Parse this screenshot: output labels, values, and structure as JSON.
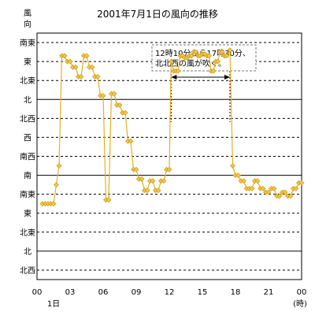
{
  "chart_data": {
    "type": "line",
    "title": "2001年7月1日の風向の推移",
    "ylabel": "風向",
    "xlabel": "(時)",
    "x_start_label": "1日",
    "x_ticks": [
      "00",
      "03",
      "06",
      "09",
      "12",
      "15",
      "18",
      "21",
      "00"
    ],
    "x_tick_hours": [
      0,
      3,
      6,
      9,
      12,
      15,
      18,
      21,
      24
    ],
    "xlim": [
      0,
      24
    ],
    "y_levels": [
      "北西",
      "北",
      "北東",
      "東",
      "南東",
      "南",
      "南西",
      "西",
      "北西",
      "北",
      "北東",
      "東",
      "南東"
    ],
    "y_solid_levels": [
      1,
      5,
      9
    ],
    "grid": true,
    "line_color": "#E8B020",
    "marker_color": "#F0C840",
    "annotation": {
      "text_lines": [
        "12時10分から17時30分、",
        "北北西の風が吹く。"
      ],
      "x_from": 12.1667,
      "x_to": 17.5
    },
    "series": [
      {
        "values": [
          [
            0.5,
            3.5
          ],
          [
            0.75,
            3.5
          ],
          [
            1.0,
            3.5
          ],
          [
            1.25,
            3.5
          ],
          [
            1.5,
            3.5
          ],
          [
            1.75,
            4.5
          ],
          [
            2.0,
            5.5
          ],
          [
            2.25,
            11.3
          ],
          [
            2.5,
            11.3
          ],
          [
            2.75,
            11.0
          ],
          [
            3.0,
            11.0
          ],
          [
            3.25,
            10.7
          ],
          [
            3.5,
            10.7
          ],
          [
            3.75,
            10.2
          ],
          [
            4.0,
            10.2
          ],
          [
            4.25,
            11.3
          ],
          [
            4.5,
            11.3
          ],
          [
            4.75,
            10.7
          ],
          [
            5.0,
            10.7
          ],
          [
            5.25,
            10.2
          ],
          [
            5.5,
            10.2
          ],
          [
            5.75,
            9.2
          ],
          [
            6.0,
            9.2
          ],
          [
            6.25,
            3.7
          ],
          [
            6.5,
            3.7
          ],
          [
            6.75,
            9.3
          ],
          [
            7.0,
            9.3
          ],
          [
            7.25,
            8.7
          ],
          [
            7.5,
            8.7
          ],
          [
            7.75,
            8.3
          ],
          [
            8.0,
            8.3
          ],
          [
            8.25,
            6.8
          ],
          [
            8.5,
            6.8
          ],
          [
            8.75,
            5.3
          ],
          [
            9.0,
            5.3
          ],
          [
            9.25,
            4.8
          ],
          [
            9.5,
            4.8
          ],
          [
            9.75,
            4.2
          ],
          [
            10.0,
            4.2
          ],
          [
            10.25,
            4.7
          ],
          [
            10.5,
            4.7
          ],
          [
            10.75,
            4.2
          ],
          [
            11.0,
            4.2
          ],
          [
            11.25,
            4.7
          ],
          [
            11.5,
            4.7
          ],
          [
            11.75,
            5.3
          ],
          [
            12.0,
            5.3
          ],
          [
            12.1667,
            11.0
          ],
          [
            12.4,
            10.5
          ],
          [
            12.6,
            10.5
          ],
          [
            12.8,
            10.5
          ],
          [
            13.0,
            11.3
          ],
          [
            13.2,
            11.3
          ],
          [
            13.4,
            11.2
          ],
          [
            13.6,
            11.2
          ],
          [
            13.8,
            11.3
          ],
          [
            14.0,
            11.3
          ],
          [
            14.2,
            11.5
          ],
          [
            14.4,
            11.5
          ],
          [
            14.6,
            11.3
          ],
          [
            14.8,
            11.3
          ],
          [
            15.0,
            11.4
          ],
          [
            15.2,
            11.4
          ],
          [
            15.4,
            11.3
          ],
          [
            15.6,
            11.3
          ],
          [
            15.8,
            10.5
          ],
          [
            16.0,
            10.5
          ],
          [
            16.2,
            11.0
          ],
          [
            16.4,
            11.0
          ],
          [
            16.6,
            11.5
          ],
          [
            16.8,
            11.5
          ],
          [
            17.0,
            11.3
          ],
          [
            17.2,
            11.3
          ],
          [
            17.5,
            11.6
          ],
          [
            17.75,
            5.5
          ],
          [
            18.0,
            5.0
          ],
          [
            18.25,
            5.0
          ],
          [
            18.5,
            4.7
          ],
          [
            18.75,
            4.7
          ],
          [
            19.0,
            4.3
          ],
          [
            19.25,
            4.3
          ],
          [
            19.5,
            4.3
          ],
          [
            19.75,
            4.7
          ],
          [
            20.0,
            4.7
          ],
          [
            20.25,
            4.3
          ],
          [
            20.5,
            4.3
          ],
          [
            20.75,
            4.1
          ],
          [
            21.0,
            4.1
          ],
          [
            21.25,
            4.3
          ],
          [
            21.5,
            4.3
          ],
          [
            21.75,
            3.9
          ],
          [
            22.0,
            3.9
          ],
          [
            22.25,
            4.1
          ],
          [
            22.5,
            4.1
          ],
          [
            22.75,
            3.9
          ],
          [
            23.0,
            3.9
          ],
          [
            23.25,
            4.3
          ],
          [
            23.5,
            4.3
          ],
          [
            23.75,
            4.6
          ],
          [
            24.0,
            4.6
          ]
        ]
      }
    ]
  }
}
